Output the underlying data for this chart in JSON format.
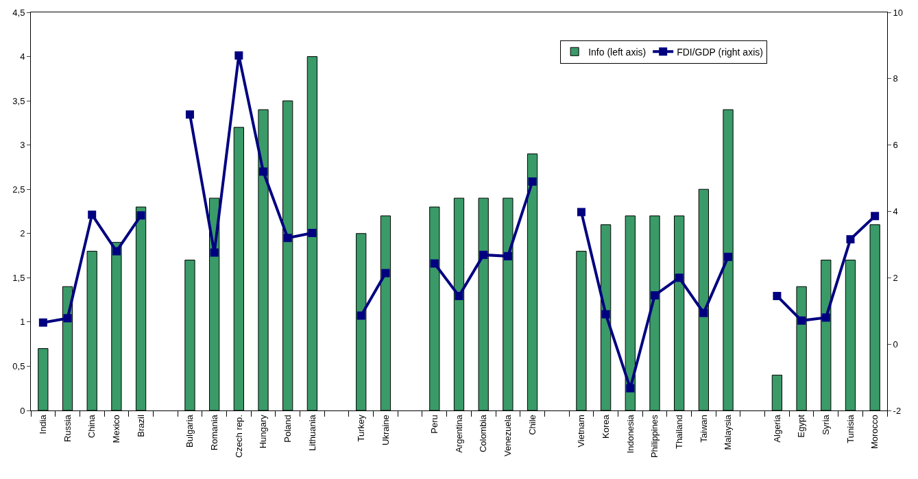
{
  "chart_data": {
    "type": "bar",
    "categories": [
      "India",
      "Russia",
      "China",
      "Mexico",
      "Brazil",
      null,
      "Bulgaria",
      "Romania",
      "Czech rep.",
      "Hungary",
      "Poland",
      "Lithuania",
      null,
      "Turkey",
      "Ukraine",
      null,
      "Peru",
      "Argentina",
      "Colombia",
      "Venezuela",
      "Chile",
      null,
      "Vietnam",
      "Korea",
      "Indonesia",
      "Philippines",
      "Thailand",
      "Taiwan",
      "Malaysia",
      null,
      "Algeria",
      "Egypt",
      "Syria",
      "Tunisia",
      "Morocco"
    ],
    "series": [
      {
        "name": "Info (left axis)",
        "color": "#3a9a68",
        "values": [
          0.7,
          1.4,
          1.8,
          1.9,
          2.3,
          null,
          1.7,
          2.4,
          3.2,
          3.4,
          3.5,
          4.0,
          null,
          2.0,
          2.2,
          null,
          2.3,
          2.4,
          2.4,
          2.4,
          2.9,
          null,
          1.8,
          2.1,
          2.2,
          2.2,
          2.2,
          2.5,
          3.4,
          null,
          0.4,
          1.4,
          1.7,
          1.7,
          2.1
        ]
      },
      {
        "name": "FDI/GDP (right axis)",
        "type": "line",
        "axis": "y2",
        "color": "#000080",
        "marker": "square",
        "line_style": "solid",
        "values": [
          0.65,
          0.78,
          3.9,
          2.8,
          3.88,
          null,
          6.92,
          2.76,
          8.7,
          5.2,
          3.2,
          3.35,
          null,
          0.86,
          2.14,
          null,
          2.43,
          1.45,
          2.69,
          2.65,
          4.9,
          null,
          3.98,
          0.9,
          -1.33,
          1.47,
          2.0,
          0.94,
          2.63,
          null,
          1.45,
          0.71,
          0.8,
          3.16,
          3.86
        ]
      }
    ],
    "ylim": [
      0,
      4.5
    ],
    "yticks": [
      0,
      {
        "value": 0.5,
        "label": "0,5"
      },
      1,
      {
        "value": 1.5,
        "label": "1,5"
      },
      2,
      {
        "value": 2.5,
        "label": "2,5"
      },
      3,
      {
        "value": 3.5,
        "label": "3,5"
      },
      4,
      {
        "value": 4.5,
        "label": "4,5"
      }
    ],
    "y2lim": [
      -2,
      10
    ],
    "y2ticks": [
      -2,
      0,
      2,
      4,
      6,
      8,
      10
    ],
    "legend": "top right"
  }
}
